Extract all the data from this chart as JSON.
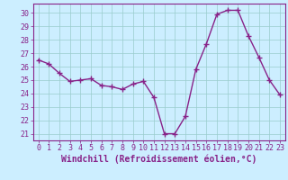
{
  "x": [
    0,
    1,
    2,
    3,
    4,
    5,
    6,
    7,
    8,
    9,
    10,
    11,
    12,
    13,
    14,
    15,
    16,
    17,
    18,
    19,
    20,
    21,
    22,
    23
  ],
  "y": [
    26.5,
    26.2,
    25.5,
    24.9,
    25.0,
    25.1,
    24.6,
    24.5,
    24.3,
    24.7,
    24.9,
    23.7,
    21.0,
    21.0,
    22.3,
    25.8,
    27.7,
    29.9,
    30.2,
    30.2,
    28.3,
    26.7,
    25.0,
    23.9
  ],
  "line_color": "#882288",
  "marker": "+",
  "marker_size": 4,
  "bg_color": "#cceeff",
  "grid_color": "#99cccc",
  "ylim": [
    20.5,
    30.7
  ],
  "yticks": [
    21,
    22,
    23,
    24,
    25,
    26,
    27,
    28,
    29,
    30
  ],
  "xticks": [
    0,
    1,
    2,
    3,
    4,
    5,
    6,
    7,
    8,
    9,
    10,
    11,
    12,
    13,
    14,
    15,
    16,
    17,
    18,
    19,
    20,
    21,
    22,
    23
  ],
  "xlabel": "Windchill (Refroidissement éolien,°C)",
  "xlabel_fontsize": 7,
  "tick_fontsize": 6,
  "line_width": 1.0,
  "spine_color": "#882288",
  "axis_label_color": "#882288"
}
